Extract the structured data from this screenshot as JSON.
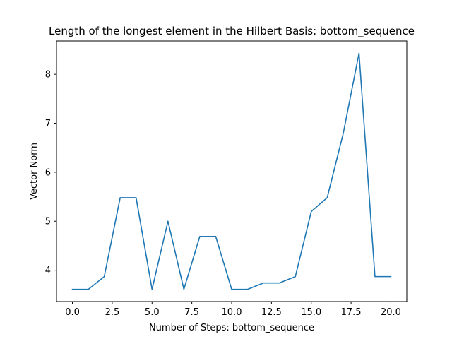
{
  "chart_data": {
    "type": "line",
    "title": "Length of the longest element in the Hilbert Basis: bottom_sequence",
    "xlabel": "Number of Steps: bottom_sequence",
    "ylabel": "Vector Norm",
    "xlim": [
      -1.0,
      21.0
    ],
    "ylim": [
      3.36,
      8.68
    ],
    "xticks": [
      0.0,
      2.5,
      5.0,
      7.5,
      10.0,
      12.5,
      15.0,
      17.5,
      20.0
    ],
    "xtick_labels": [
      "0.0",
      "2.5",
      "5.0",
      "7.5",
      "10.0",
      "12.5",
      "15.0",
      "17.5",
      "20.0"
    ],
    "yticks": [
      4,
      5,
      6,
      7,
      8
    ],
    "ytick_labels": [
      "4",
      "5",
      "6",
      "7",
      "8"
    ],
    "grid": false,
    "series": [
      {
        "color": "#1f77b4",
        "x": [
          0,
          1,
          2,
          3,
          4,
          5,
          6,
          7,
          8,
          9,
          10,
          11,
          12,
          13,
          14,
          15,
          16,
          17,
          18,
          19,
          20
        ],
        "values": [
          3.61,
          3.61,
          3.87,
          5.48,
          5.48,
          3.61,
          5.0,
          3.61,
          4.69,
          4.69,
          3.61,
          3.61,
          3.74,
          3.74,
          3.87,
          5.2,
          5.48,
          6.78,
          8.43,
          3.87,
          3.87
        ]
      }
    ]
  }
}
